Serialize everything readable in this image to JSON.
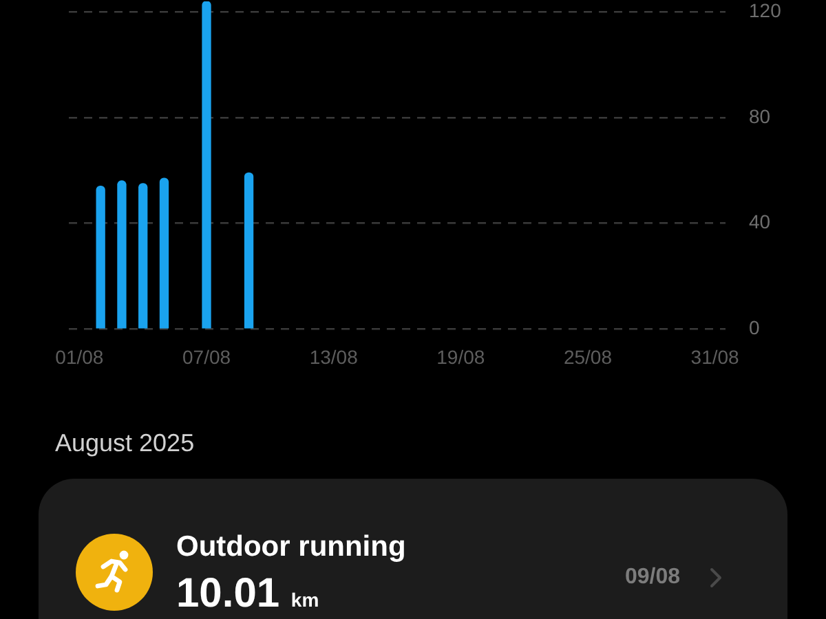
{
  "chart_data": {
    "type": "bar",
    "categories": [
      "01/08",
      null,
      null,
      null,
      null,
      null,
      "07/08",
      null,
      null,
      null,
      null,
      null,
      "13/08",
      null,
      null,
      null,
      null,
      null,
      "19/08",
      null,
      null,
      null,
      null,
      null,
      "25/08",
      null,
      null,
      null,
      null,
      null,
      "31/08"
    ],
    "values": [
      null,
      54,
      56,
      55,
      57,
      null,
      124,
      null,
      59,
      null,
      null,
      null,
      null,
      null,
      null,
      null,
      null,
      null,
      null,
      null,
      null,
      null,
      null,
      null,
      null,
      null,
      null,
      null,
      null,
      null,
      null
    ],
    "color": "#1aa3ef",
    "ylim": [
      0,
      124
    ],
    "yticks": [
      0,
      40,
      80,
      120
    ],
    "grid": "y",
    "annotations": [
      "August 2025",
      "Outdoor running",
      "10.01 km",
      "09/08"
    ]
  }
}
